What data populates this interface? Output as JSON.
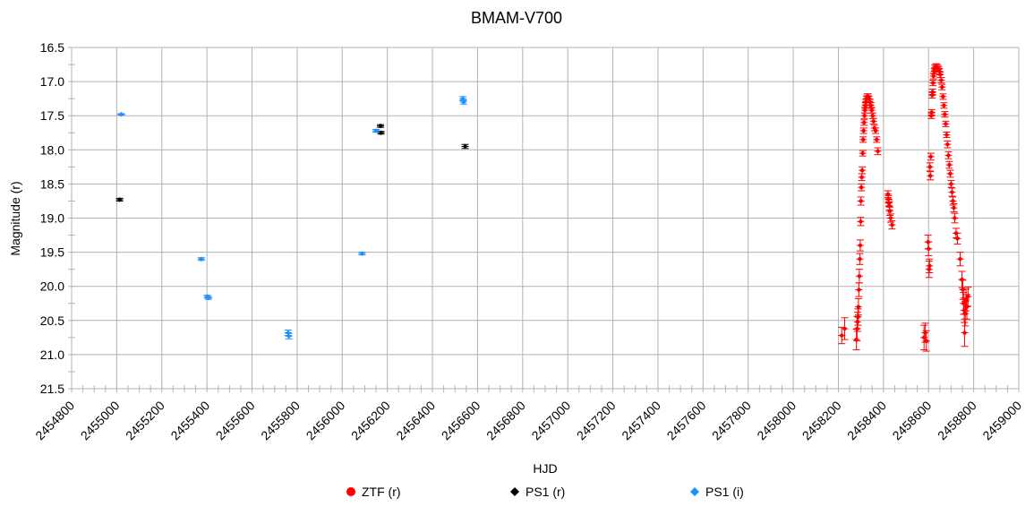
{
  "chart_data": {
    "type": "scatter",
    "title": "BMAM-V700",
    "xlabel": "HJD",
    "ylabel": "Magnitude (r)",
    "xlim": [
      2454800,
      2459000
    ],
    "ylim": [
      16.5,
      21.5
    ],
    "y_inverted": true,
    "grid": true,
    "legend_position": "bottom",
    "x_ticks": [
      "2454800",
      "2455000",
      "2455200",
      "2455400",
      "2455600",
      "2455800",
      "2456000",
      "2456200",
      "2456400",
      "2456600",
      "2456800",
      "2457000",
      "2457200",
      "2457400",
      "2457600",
      "2457800",
      "2458000",
      "2458200",
      "2458400",
      "2458600",
      "2458800",
      "2459000"
    ],
    "y_ticks": [
      "16.5",
      "17.0",
      "17.5",
      "18.0",
      "18.5",
      "19.0",
      "19.5",
      "20.0",
      "20.5",
      "21.0",
      "21.5"
    ],
    "series": [
      {
        "name": "ZTF (r)",
        "color": "#ff0000",
        "marker": "circle",
        "points": [
          [
            2458215,
            20.72,
            0.12
          ],
          [
            2458228,
            20.62,
            0.16
          ],
          [
            2458280,
            20.78,
            0.15
          ],
          [
            2458283,
            20.62,
            0.18
          ],
          [
            2458285,
            20.52,
            0.14
          ],
          [
            2458287,
            20.45,
            0.12
          ],
          [
            2458289,
            20.3,
            0.12
          ],
          [
            2458291,
            20.05,
            0.1
          ],
          [
            2458293,
            19.85,
            0.1
          ],
          [
            2458295,
            19.6,
            0.08
          ],
          [
            2458297,
            19.4,
            0.08
          ],
          [
            2458299,
            19.05,
            0.06
          ],
          [
            2458300,
            18.75,
            0.06
          ],
          [
            2458302,
            18.55,
            0.05
          ],
          [
            2458304,
            18.4,
            0.05
          ],
          [
            2458306,
            18.3,
            0.05
          ],
          [
            2458308,
            18.05,
            0.04
          ],
          [
            2458310,
            17.85,
            0.04
          ],
          [
            2458312,
            17.72,
            0.04
          ],
          [
            2458314,
            17.6,
            0.04
          ],
          [
            2458316,
            17.5,
            0.04
          ],
          [
            2458318,
            17.42,
            0.04
          ],
          [
            2458320,
            17.35,
            0.04
          ],
          [
            2458322,
            17.3,
            0.04
          ],
          [
            2458325,
            17.25,
            0.04
          ],
          [
            2458328,
            17.22,
            0.04
          ],
          [
            2458332,
            17.22,
            0.04
          ],
          [
            2458336,
            17.25,
            0.04
          ],
          [
            2458340,
            17.3,
            0.04
          ],
          [
            2458344,
            17.35,
            0.04
          ],
          [
            2458348,
            17.42,
            0.04
          ],
          [
            2458352,
            17.5,
            0.04
          ],
          [
            2458356,
            17.58,
            0.04
          ],
          [
            2458360,
            17.68,
            0.04
          ],
          [
            2458365,
            17.72,
            0.04
          ],
          [
            2458370,
            17.85,
            0.04
          ],
          [
            2458375,
            18.02,
            0.05
          ],
          [
            2458420,
            18.65,
            0.05
          ],
          [
            2458422,
            18.72,
            0.05
          ],
          [
            2458424,
            18.78,
            0.05
          ],
          [
            2458426,
            18.82,
            0.06
          ],
          [
            2458428,
            18.9,
            0.06
          ],
          [
            2458432,
            19.0,
            0.06
          ],
          [
            2458438,
            19.1,
            0.06
          ],
          [
            2458580,
            20.75,
            0.18
          ],
          [
            2458585,
            20.68,
            0.14
          ],
          [
            2458590,
            20.8,
            0.15
          ],
          [
            2458598,
            19.35,
            0.1
          ],
          [
            2458600,
            19.45,
            0.1
          ],
          [
            2458602,
            19.75,
            0.12
          ],
          [
            2458604,
            19.7,
            0.1
          ],
          [
            2458606,
            18.25,
            0.06
          ],
          [
            2458608,
            18.38,
            0.06
          ],
          [
            2458610,
            18.1,
            0.05
          ],
          [
            2458612,
            17.5,
            0.04
          ],
          [
            2458614,
            17.45,
            0.04
          ],
          [
            2458616,
            17.2,
            0.04
          ],
          [
            2458618,
            17.15,
            0.04
          ],
          [
            2458620,
            17.02,
            0.04
          ],
          [
            2458622,
            16.92,
            0.04
          ],
          [
            2458625,
            16.85,
            0.04
          ],
          [
            2458628,
            16.8,
            0.04
          ],
          [
            2458632,
            16.78,
            0.04
          ],
          [
            2458636,
            16.78,
            0.04
          ],
          [
            2458640,
            16.8,
            0.04
          ],
          [
            2458644,
            16.82,
            0.04
          ],
          [
            2458648,
            16.85,
            0.04
          ],
          [
            2458652,
            16.9,
            0.04
          ],
          [
            2458656,
            16.98,
            0.04
          ],
          [
            2458660,
            17.08,
            0.04
          ],
          [
            2458664,
            17.22,
            0.04
          ],
          [
            2458668,
            17.35,
            0.04
          ],
          [
            2458672,
            17.48,
            0.04
          ],
          [
            2458676,
            17.62,
            0.04
          ],
          [
            2458680,
            17.78,
            0.04
          ],
          [
            2458684,
            17.92,
            0.05
          ],
          [
            2458688,
            18.08,
            0.05
          ],
          [
            2458692,
            18.22,
            0.05
          ],
          [
            2458696,
            18.35,
            0.05
          ],
          [
            2458700,
            18.5,
            0.05
          ],
          [
            2458704,
            18.62,
            0.06
          ],
          [
            2458708,
            18.75,
            0.06
          ],
          [
            2458712,
            18.85,
            0.06
          ],
          [
            2458716,
            19.0,
            0.07
          ],
          [
            2458722,
            19.22,
            0.07
          ],
          [
            2458728,
            19.3,
            0.08
          ],
          [
            2458740,
            19.6,
            0.1
          ],
          [
            2458748,
            19.9,
            0.12
          ],
          [
            2458752,
            20.05,
            0.14
          ],
          [
            2458755,
            20.25,
            0.16
          ],
          [
            2458758,
            20.35,
            0.18
          ],
          [
            2458760,
            20.68,
            0.2
          ],
          [
            2458763,
            20.4,
            0.18
          ],
          [
            2458766,
            20.2,
            0.16
          ],
          [
            2458770,
            20.3,
            0.18
          ],
          [
            2458775,
            20.15,
            0.14
          ]
        ]
      },
      {
        "name": "PS1 (r)",
        "color": "#000000",
        "marker": "diamond",
        "points": [
          [
            2455013,
            18.73,
            0.02
          ],
          [
            2456170,
            17.65,
            0.02
          ],
          [
            2456172,
            17.75,
            0.02
          ],
          [
            2456545,
            17.95,
            0.03
          ]
        ]
      },
      {
        "name": "PS1 (i)",
        "color": "#1e90ff",
        "marker": "diamond",
        "points": [
          [
            2455020,
            17.48,
            0.01
          ],
          [
            2455375,
            19.6,
            0.02
          ],
          [
            2455402,
            20.15,
            0.02
          ],
          [
            2455407,
            20.17,
            0.02
          ],
          [
            2455760,
            20.68,
            0.04
          ],
          [
            2455763,
            20.73,
            0.04
          ],
          [
            2456088,
            19.52,
            0.02
          ],
          [
            2456150,
            17.72,
            0.02
          ],
          [
            2456535,
            17.25,
            0.03
          ],
          [
            2456538,
            17.3,
            0.03
          ]
        ]
      }
    ]
  }
}
